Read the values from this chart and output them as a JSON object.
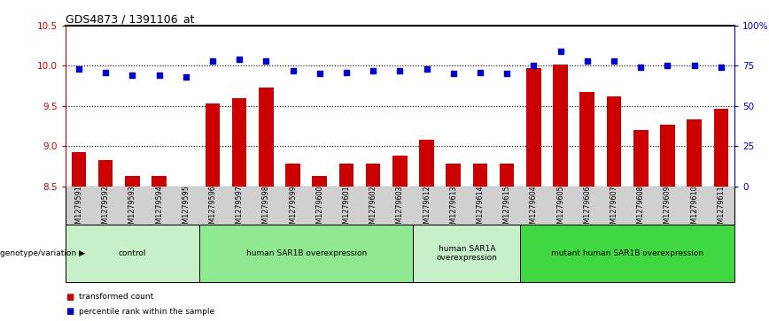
{
  "title": "GDS4873 / 1391106_at",
  "samples": [
    "GSM1279591",
    "GSM1279592",
    "GSM1279593",
    "GSM1279594",
    "GSM1279595",
    "GSM1279596",
    "GSM1279597",
    "GSM1279598",
    "GSM1279599",
    "GSM1279600",
    "GSM1279601",
    "GSM1279602",
    "GSM1279603",
    "GSM1279612",
    "GSM1279613",
    "GSM1279614",
    "GSM1279615",
    "GSM1279604",
    "GSM1279605",
    "GSM1279606",
    "GSM1279607",
    "GSM1279608",
    "GSM1279609",
    "GSM1279610",
    "GSM1279611"
  ],
  "red_values": [
    8.93,
    8.82,
    8.63,
    8.63,
    8.5,
    9.53,
    9.6,
    9.73,
    8.78,
    8.63,
    8.78,
    8.78,
    8.88,
    9.08,
    8.78,
    8.78,
    8.78,
    9.97,
    10.02,
    9.67,
    9.62,
    9.2,
    9.27,
    9.33,
    9.47
  ],
  "blue_values": [
    73,
    71,
    69,
    69,
    68,
    78,
    79,
    78,
    72,
    70,
    71,
    72,
    72,
    73,
    70,
    71,
    70,
    75,
    84,
    78,
    78,
    74,
    75,
    75,
    74
  ],
  "groups": [
    {
      "label": "control",
      "start": 0,
      "end": 5,
      "color": "#c8f0c8"
    },
    {
      "label": "human SAR1B overexpression",
      "start": 5,
      "end": 13,
      "color": "#90e890"
    },
    {
      "label": "human SAR1A\noverexpression",
      "start": 13,
      "end": 17,
      "color": "#c8f0c8"
    },
    {
      "label": "mutant human SAR1B overexpression",
      "start": 17,
      "end": 25,
      "color": "#40d840"
    }
  ],
  "ylim_left": [
    8.5,
    10.5
  ],
  "ylim_right": [
    0,
    100
  ],
  "yticks_left": [
    8.5,
    9.0,
    9.5,
    10.0,
    10.5
  ],
  "yticks_right": [
    0,
    25,
    50,
    75,
    100
  ],
  "ytick_labels_right": [
    "0",
    "25",
    "50",
    "75",
    "100%"
  ],
  "bar_color": "#cc0000",
  "dot_color": "#0000cc",
  "bg_color": "#ffffff",
  "xtick_bg_color": "#d0d0d0",
  "legend_items": [
    {
      "color": "#cc0000",
      "label": "transformed count"
    },
    {
      "color": "#0000cc",
      "label": "percentile rank within the sample"
    }
  ]
}
